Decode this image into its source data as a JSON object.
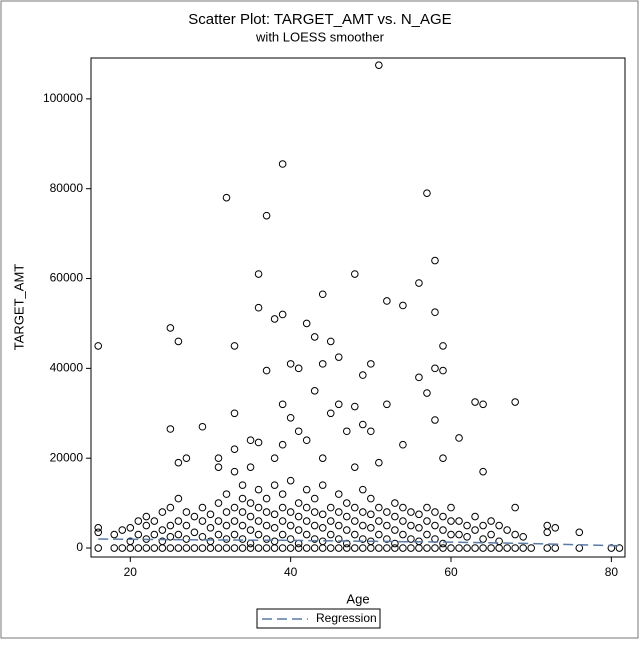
{
  "chart_data": {
    "type": "scatter",
    "title": "Scatter Plot: TARGET_AMT vs. N_AGE",
    "subtitle": "with LOESS smoother",
    "x_label": "Age",
    "y_label": "TARGET_AMT",
    "xlim": [
      15.1,
      81.7
    ],
    "ylim": [
      -2000,
      109100
    ],
    "xticks": [
      20,
      40,
      60,
      80
    ],
    "yticks": [
      0,
      20000,
      40000,
      60000,
      80000,
      100000
    ],
    "marker_color": "#000000",
    "x": [
      16,
      25,
      25,
      26,
      26,
      27,
      29,
      31,
      31,
      32,
      33,
      33,
      33,
      33,
      34,
      35,
      35,
      36,
      36,
      36,
      37,
      37,
      38,
      38,
      39,
      39,
      39,
      39,
      40,
      40,
      41,
      41,
      42,
      42,
      43,
      43,
      44,
      44,
      44,
      45,
      45,
      46,
      46,
      47,
      48,
      48,
      48,
      49,
      49,
      50,
      50,
      51,
      51,
      52,
      52,
      54,
      54,
      56,
      56,
      57,
      57,
      58,
      58,
      58,
      58,
      59,
      59,
      59,
      61,
      63,
      64,
      64,
      68,
      16,
      16,
      16,
      18,
      18,
      19,
      19,
      20,
      20,
      20,
      21,
      21,
      21,
      22,
      22,
      22,
      22,
      23,
      23,
      23,
      24,
      24,
      24,
      24,
      25,
      25,
      25,
      25,
      26,
      26,
      26,
      26,
      27,
      27,
      27,
      27,
      28,
      28,
      28,
      29,
      29,
      29,
      29,
      30,
      30,
      30,
      30,
      31,
      31,
      31,
      31,
      32,
      32,
      32,
      32,
      32,
      33,
      33,
      33,
      33,
      34,
      34,
      34,
      34,
      34,
      35,
      35,
      35,
      35,
      35,
      36,
      36,
      36,
      36,
      36,
      37,
      37,
      37,
      37,
      37,
      38,
      38,
      38,
      38,
      38,
      39,
      39,
      39,
      39,
      39,
      40,
      40,
      40,
      40,
      40,
      41,
      41,
      41,
      41,
      41,
      42,
      42,
      42,
      42,
      42,
      43,
      43,
      43,
      43,
      43,
      44,
      44,
      44,
      44,
      44,
      45,
      45,
      45,
      45,
      46,
      46,
      46,
      46,
      46,
      47,
      47,
      47,
      47,
      47,
      48,
      48,
      48,
      48,
      49,
      49,
      49,
      49,
      49,
      50,
      50,
      50,
      50,
      50,
      51,
      51,
      51,
      51,
      52,
      52,
      52,
      52,
      53,
      53,
      53,
      53,
      53,
      54,
      54,
      54,
      54,
      55,
      55,
      55,
      55,
      56,
      56,
      56,
      56,
      57,
      57,
      57,
      57,
      58,
      58,
      58,
      58,
      59,
      59,
      59,
      59,
      60,
      60,
      60,
      60,
      61,
      61,
      61,
      62,
      62,
      62,
      63,
      63,
      63,
      64,
      64,
      64,
      65,
      65,
      65,
      66,
      66,
      66,
      67,
      67,
      68,
      68,
      68,
      69,
      69,
      70,
      72,
      72,
      72,
      73,
      73,
      76,
      76,
      80,
      81
    ],
    "y": [
      45000,
      49000,
      26500,
      46000,
      19000,
      20000,
      27000,
      20000,
      18000,
      78000,
      45000,
      30000,
      22000,
      17000,
      14000,
      24000,
      18000,
      61000,
      53500,
      23500,
      74000,
      39500,
      51000,
      20000,
      85500,
      52000,
      32000,
      23000,
      41000,
      29000,
      40000,
      26000,
      50000,
      24000,
      47000,
      35000,
      56500,
      41000,
      20000,
      46000,
      30000,
      42500,
      32000,
      26000,
      61000,
      31500,
      18000,
      38500,
      27500,
      41000,
      26000,
      107500,
      19000,
      55000,
      32000,
      54000,
      23000,
      59000,
      38000,
      79000,
      34500,
      64000,
      52500,
      40000,
      28500,
      45000,
      39500,
      20000,
      24500,
      32500,
      32000,
      17000,
      32500,
      0,
      3500,
      4500,
      0,
      3000,
      0,
      4000,
      0,
      1500,
      4500,
      0,
      3000,
      6000,
      0,
      2000,
      5000,
      7000,
      0,
      3000,
      6000,
      0,
      1500,
      4000,
      8000,
      0,
      2500,
      5000,
      9000,
      0,
      3000,
      6000,
      11000,
      0,
      2000,
      5000,
      8000,
      0,
      3500,
      7000,
      0,
      2500,
      6000,
      9000,
      0,
      1500,
      4500,
      7500,
      0,
      3000,
      6000,
      10000,
      0,
      2000,
      5000,
      8000,
      12000,
      0,
      3000,
      6000,
      9000,
      0,
      2000,
      5000,
      8000,
      11000,
      0,
      1000,
      4000,
      7000,
      10000,
      0,
      3000,
      6000,
      9000,
      13000,
      0,
      2000,
      5000,
      8000,
      11000,
      0,
      1500,
      4500,
      7500,
      14000,
      0,
      3000,
      6000,
      9000,
      12000,
      0,
      2000,
      5000,
      8000,
      15000,
      0,
      1000,
      4000,
      7000,
      10000,
      0,
      3000,
      6000,
      9000,
      13000,
      0,
      2000,
      5000,
      8000,
      11000,
      0,
      1500,
      4500,
      7500,
      14000,
      0,
      3000,
      6000,
      9000,
      0,
      2000,
      5000,
      8000,
      12000,
      0,
      1000,
      4000,
      7000,
      10000,
      0,
      3000,
      6000,
      9000,
      0,
      2000,
      5000,
      8000,
      13000,
      0,
      1500,
      4500,
      7500,
      11000,
      0,
      3000,
      6000,
      9000,
      0,
      2000,
      5000,
      8000,
      0,
      1000,
      4000,
      7000,
      10000,
      0,
      3000,
      6000,
      9000,
      0,
      2000,
      5000,
      8000,
      0,
      1500,
      4500,
      7500,
      0,
      3000,
      6000,
      9000,
      0,
      2000,
      5000,
      8000,
      0,
      1000,
      4000,
      7000,
      0,
      3000,
      6000,
      9000,
      0,
      3000,
      6000,
      0,
      2500,
      5000,
      0,
      4000,
      7000,
      0,
      2000,
      5000,
      0,
      3000,
      6000,
      0,
      1500,
      5000,
      0,
      4000,
      0,
      3000,
      9000,
      0,
      2500,
      0,
      0,
      3500,
      5000,
      0,
      4500,
      0,
      3500,
      0,
      0
    ],
    "regression": {
      "name": "Regression",
      "color": "#5b7ba5",
      "x": [
        16,
        30,
        40,
        50,
        60,
        70,
        81
      ],
      "y": [
        2000,
        1800,
        1700,
        1500,
        1300,
        1000,
        500
      ]
    }
  }
}
